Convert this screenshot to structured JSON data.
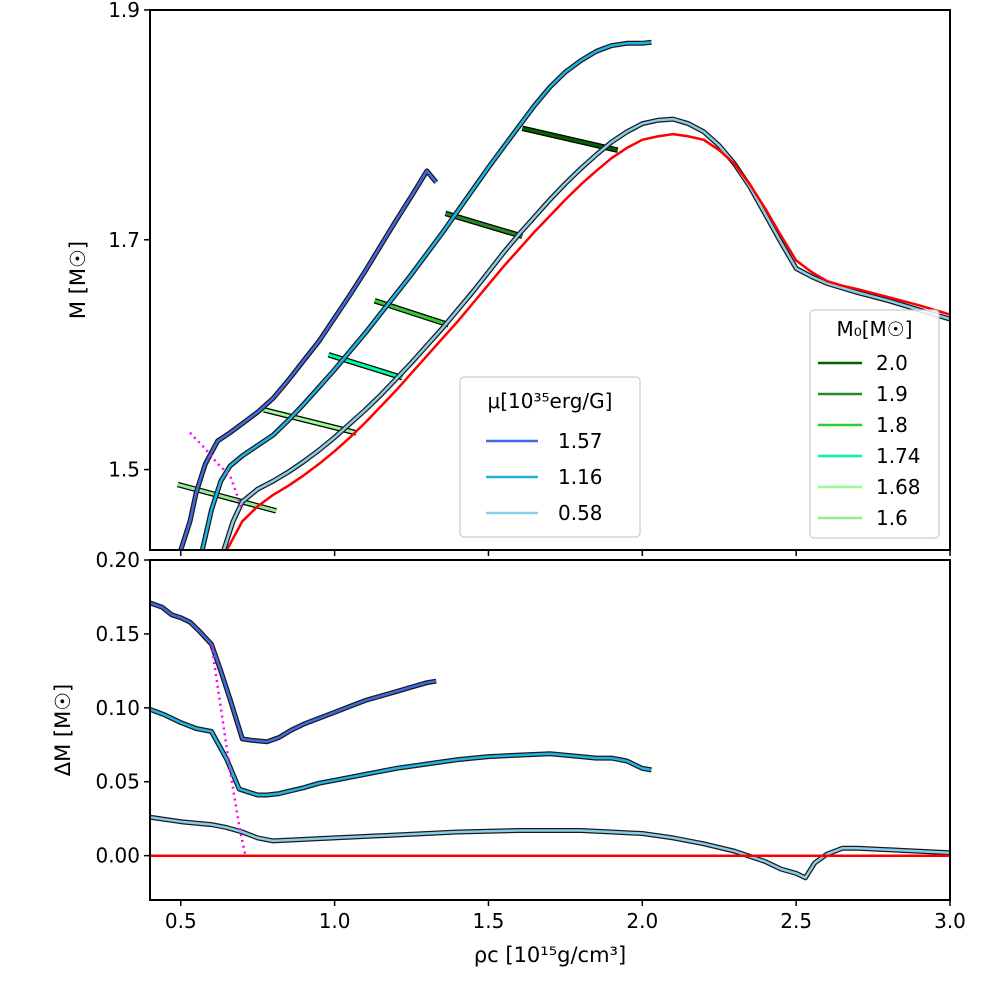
{
  "chart_data": [
    {
      "type": "line",
      "panel": "top",
      "ylabel": "M [M☉]",
      "xlim": [
        0.4,
        3.0
      ],
      "ylim": [
        1.43,
        1.9
      ],
      "yticks": [
        1.5,
        1.7,
        1.9
      ],
      "yticklabels": [
        "1.5",
        "1.7",
        "1.9"
      ],
      "xticks": [
        0.5,
        1.0,
        1.5,
        2.0,
        2.5,
        3.0
      ],
      "grid": false,
      "series": [
        {
          "name": "1.57",
          "color": "#4169e1",
          "x": [
            0.5,
            0.53,
            0.55,
            0.58,
            0.62,
            0.66,
            0.7,
            0.75,
            0.8,
            0.85,
            0.9,
            0.95,
            1.0,
            1.05,
            1.1,
            1.15,
            1.2,
            1.25,
            1.3,
            1.33
          ],
          "y": [
            1.43,
            1.455,
            1.48,
            1.505,
            1.525,
            1.532,
            1.54,
            1.55,
            1.562,
            1.578,
            1.595,
            1.612,
            1.632,
            1.652,
            1.673,
            1.695,
            1.717,
            1.738,
            1.76,
            1.75
          ]
        },
        {
          "name": "1.16",
          "color": "#1eb4e6",
          "x": [
            0.57,
            0.6,
            0.63,
            0.66,
            0.7,
            0.75,
            0.8,
            0.85,
            0.9,
            0.95,
            1.0,
            1.05,
            1.1,
            1.15,
            1.2,
            1.25,
            1.3,
            1.35,
            1.4,
            1.45,
            1.5,
            1.55,
            1.6,
            1.65,
            1.7,
            1.75,
            1.8,
            1.85,
            1.9,
            1.95,
            2.0,
            2.03
          ],
          "y": [
            1.43,
            1.465,
            1.49,
            1.503,
            1.512,
            1.521,
            1.53,
            1.543,
            1.557,
            1.572,
            1.587,
            1.603,
            1.619,
            1.636,
            1.653,
            1.67,
            1.688,
            1.706,
            1.725,
            1.744,
            1.763,
            1.781,
            1.799,
            1.817,
            1.833,
            1.846,
            1.856,
            1.864,
            1.869,
            1.871,
            1.871,
            1.872
          ]
        },
        {
          "name": "0.58",
          "color": "#87ceeb",
          "x": [
            0.64,
            0.67,
            0.7,
            0.75,
            0.8,
            0.85,
            0.9,
            0.95,
            1.0,
            1.05,
            1.1,
            1.15,
            1.2,
            1.25,
            1.3,
            1.35,
            1.4,
            1.45,
            1.5,
            1.55,
            1.6,
            1.65,
            1.7,
            1.75,
            1.8,
            1.85,
            1.9,
            1.95,
            2.0,
            2.05,
            2.1,
            2.15,
            2.2,
            2.25,
            2.3,
            2.35,
            2.4,
            2.45,
            2.5,
            2.55,
            2.6,
            2.65,
            2.7,
            2.8,
            2.9,
            3.0
          ],
          "y": [
            1.43,
            1.455,
            1.472,
            1.483,
            1.49,
            1.498,
            1.507,
            1.517,
            1.528,
            1.54,
            1.552,
            1.565,
            1.579,
            1.593,
            1.608,
            1.623,
            1.639,
            1.655,
            1.672,
            1.689,
            1.705,
            1.72,
            1.735,
            1.749,
            1.762,
            1.774,
            1.785,
            1.794,
            1.801,
            1.804,
            1.805,
            1.801,
            1.794,
            1.782,
            1.766,
            1.746,
            1.722,
            1.698,
            1.675,
            1.668,
            1.662,
            1.658,
            1.654,
            1.647,
            1.639,
            1.631
          ]
        },
        {
          "name": "",
          "color": "#ff0000",
          "x": [
            0.65,
            0.7,
            0.75,
            0.8,
            0.85,
            0.9,
            0.95,
            1.0,
            1.05,
            1.1,
            1.15,
            1.2,
            1.25,
            1.3,
            1.35,
            1.4,
            1.45,
            1.5,
            1.55,
            1.6,
            1.65,
            1.7,
            1.75,
            1.8,
            1.85,
            1.9,
            1.95,
            2.0,
            2.05,
            2.1,
            2.15,
            2.2,
            2.25,
            2.3,
            2.35,
            2.4,
            2.45,
            2.5,
            2.55,
            2.6,
            2.65,
            2.7,
            2.8,
            2.9,
            3.0
          ],
          "y": [
            1.43,
            1.455,
            1.468,
            1.478,
            1.486,
            1.495,
            1.505,
            1.516,
            1.528,
            1.541,
            1.555,
            1.569,
            1.584,
            1.599,
            1.614,
            1.629,
            1.645,
            1.661,
            1.677,
            1.692,
            1.707,
            1.721,
            1.735,
            1.748,
            1.76,
            1.771,
            1.78,
            1.787,
            1.79,
            1.792,
            1.79,
            1.787,
            1.778,
            1.766,
            1.748,
            1.727,
            1.704,
            1.682,
            1.672,
            1.664,
            1.66,
            1.657,
            1.65,
            1.643,
            1.635
          ]
        },
        {
          "name": "",
          "color": "#ff00ff",
          "dotted": true,
          "x": [
            0.53,
            0.58,
            0.62,
            0.66,
            0.7
          ],
          "y": [
            1.532,
            1.518,
            1.505,
            1.495,
            1.465
          ]
        }
      ],
      "iso_lines": [
        {
          "label": "2.0",
          "color": "#006400",
          "x": [
            1.61,
            1.92
          ],
          "y": [
            1.797,
            1.778
          ]
        },
        {
          "label": "1.9",
          "color": "#228b22",
          "x": [
            1.36,
            1.61
          ],
          "y": [
            1.723,
            1.703
          ]
        },
        {
          "label": "1.8",
          "color": "#32cd32",
          "x": [
            1.13,
            1.37
          ],
          "y": [
            1.647,
            1.626
          ]
        },
        {
          "label": "1.74",
          "color": "#00fa9a",
          "x": [
            0.98,
            1.22
          ],
          "y": [
            1.6,
            1.58
          ]
        },
        {
          "label": "1.68",
          "color": "#98fb98",
          "x": [
            0.77,
            1.07
          ],
          "y": [
            1.552,
            1.532
          ]
        },
        {
          "label": "1.6",
          "color": "#90ee90",
          "x": [
            0.49,
            0.81
          ],
          "y": [
            1.487,
            1.464
          ]
        }
      ],
      "legend_mu": {
        "title": "μ[10³⁵erg/G]",
        "placement": "lower-center",
        "entries": [
          {
            "label": "1.57",
            "color": "#4169e1"
          },
          {
            "label": "1.16",
            "color": "#1eb4e6"
          },
          {
            "label": "0.58",
            "color": "#87ceeb"
          }
        ]
      },
      "legend_m0": {
        "title": "M₀[M☉]",
        "placement": "lower-right",
        "entries": [
          {
            "label": "2.0",
            "color": "#006400"
          },
          {
            "label": "1.9",
            "color": "#228b22"
          },
          {
            "label": "1.8",
            "color": "#32cd32"
          },
          {
            "label": "1.74",
            "color": "#00fa9a"
          },
          {
            "label": "1.68",
            "color": "#98fb98"
          },
          {
            "label": "1.6",
            "color": "#90ee90"
          }
        ]
      }
    },
    {
      "type": "line",
      "panel": "bottom",
      "ylabel": "ΔM [M☉]",
      "xlabel": "ρc [10¹⁵g/cm³]",
      "xlim": [
        0.4,
        3.0
      ],
      "ylim": [
        -0.03,
        0.2
      ],
      "yticks": [
        0.0,
        0.05,
        0.1,
        0.15,
        0.2
      ],
      "yticklabels": [
        "0.00",
        "0.05",
        "0.10",
        "0.15",
        "0.20"
      ],
      "xticks": [
        0.5,
        1.0,
        1.5,
        2.0,
        2.5,
        3.0
      ],
      "xticklabels": [
        "0.5",
        "1.0",
        "1.5",
        "2.0",
        "2.5",
        "3.0"
      ],
      "grid": false,
      "series": [
        {
          "name": "1.57",
          "color": "#4169e1",
          "x": [
            0.4,
            0.44,
            0.47,
            0.5,
            0.53,
            0.56,
            0.6,
            0.63,
            0.66,
            0.7,
            0.73,
            0.78,
            0.82,
            0.86,
            0.9,
            0.95,
            1.0,
            1.05,
            1.1,
            1.15,
            1.2,
            1.25,
            1.3,
            1.33
          ],
          "y": [
            0.171,
            0.168,
            0.163,
            0.161,
            0.158,
            0.152,
            0.143,
            0.125,
            0.106,
            0.079,
            0.078,
            0.077,
            0.08,
            0.085,
            0.089,
            0.093,
            0.097,
            0.101,
            0.105,
            0.108,
            0.111,
            0.114,
            0.117,
            0.118
          ]
        },
        {
          "name": "1.16",
          "color": "#1eb4e6",
          "x": [
            0.4,
            0.45,
            0.5,
            0.55,
            0.6,
            0.65,
            0.69,
            0.72,
            0.75,
            0.78,
            0.82,
            0.86,
            0.9,
            0.95,
            1.0,
            1.1,
            1.2,
            1.3,
            1.4,
            1.5,
            1.6,
            1.7,
            1.8,
            1.85,
            1.9,
            1.95,
            2.0,
            2.03
          ],
          "y": [
            0.099,
            0.095,
            0.09,
            0.086,
            0.084,
            0.065,
            0.045,
            0.043,
            0.041,
            0.041,
            0.042,
            0.044,
            0.046,
            0.049,
            0.051,
            0.055,
            0.059,
            0.062,
            0.065,
            0.067,
            0.068,
            0.069,
            0.067,
            0.066,
            0.066,
            0.064,
            0.059,
            0.058
          ]
        },
        {
          "name": "0.58",
          "color": "#87ceeb",
          "x": [
            0.4,
            0.5,
            0.6,
            0.65,
            0.7,
            0.75,
            0.8,
            0.9,
            1.0,
            1.2,
            1.4,
            1.6,
            1.8,
            1.9,
            2.0,
            2.1,
            2.2,
            2.3,
            2.4,
            2.45,
            2.5,
            2.53,
            2.56,
            2.6,
            2.65,
            2.7,
            2.8,
            2.9,
            3.0
          ],
          "y": [
            0.026,
            0.023,
            0.021,
            0.019,
            0.016,
            0.012,
            0.01,
            0.011,
            0.012,
            0.014,
            0.016,
            0.017,
            0.017,
            0.016,
            0.015,
            0.012,
            0.008,
            0.003,
            -0.004,
            -0.009,
            -0.012,
            -0.015,
            -0.005,
            0.001,
            0.005,
            0.005,
            0.004,
            0.003,
            0.002
          ]
        },
        {
          "name": "",
          "color": "#ff0000",
          "x": [
            0.4,
            3.0
          ],
          "y": [
            0.0,
            0.0
          ]
        },
        {
          "name": "",
          "color": "#ff00ff",
          "dotted": true,
          "x": [
            0.6,
            0.63,
            0.66,
            0.69,
            0.71
          ],
          "y": [
            0.143,
            0.1,
            0.058,
            0.02,
            0.0
          ]
        }
      ]
    }
  ]
}
